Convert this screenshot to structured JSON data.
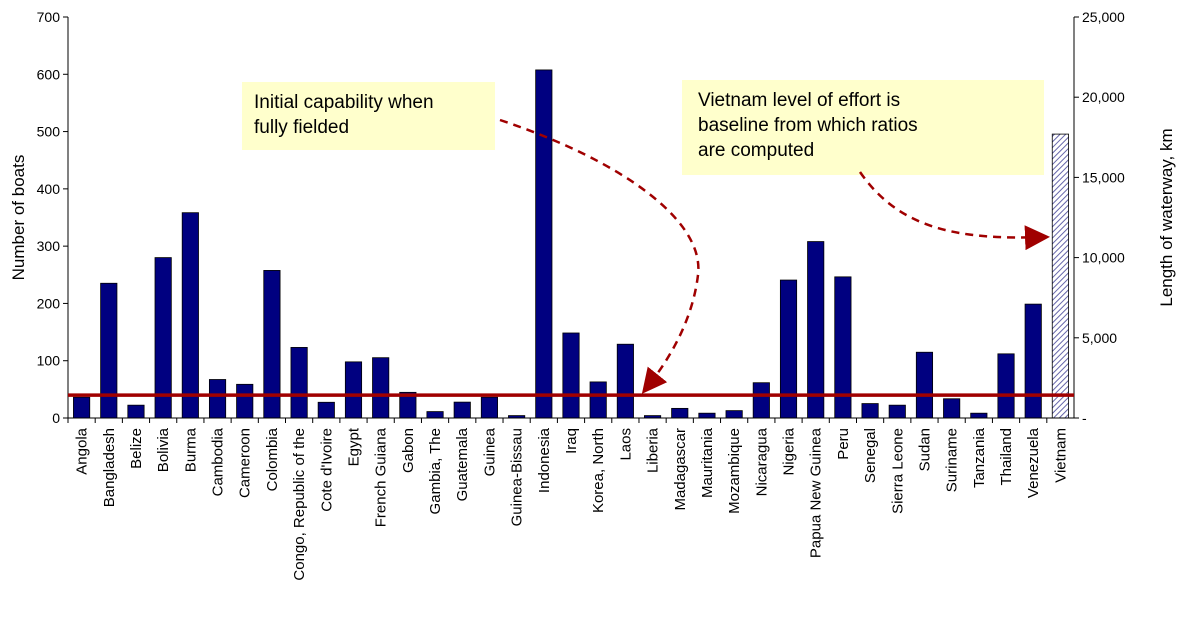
{
  "chart_data": {
    "type": "bar",
    "categories": [
      "Angola",
      "Bangladesh",
      "Belize",
      "Bolivia",
      "Burma",
      "Cambodia",
      "Cameroon",
      "Colombia",
      "Congo, Republic of the",
      "Cote d'Ivoire",
      "Egypt",
      "French Guiana",
      "Gabon",
      "Gambia, The",
      "Guatemala",
      "Guinea",
      "Guinea-Bissau",
      "Indonesia",
      "Iraq",
      "Korea, North",
      "Laos",
      "Liberia",
      "Madagascar",
      "Mauritania",
      "Mozambique",
      "Nicaragua",
      "Nigeria",
      "Papua New Guinea",
      "Peru",
      "Senegal",
      "Sierra Leone",
      "Sudan",
      "Suriname",
      "Tanzania",
      "Thailand",
      "Venezuela",
      "Vietnam"
    ],
    "values": [
      1300,
      8400,
      800,
      10000,
      12800,
      2400,
      2100,
      9200,
      4400,
      980,
      3500,
      3760,
      1600,
      400,
      990,
      1300,
      150,
      21700,
      5300,
      2250,
      4600,
      150,
      600,
      300,
      460,
      2200,
      8600,
      11000,
      8800,
      900,
      800,
      4100,
      1200,
      300,
      4000,
      7100,
      17700
    ],
    "values_axis": "y2",
    "color": "#000080",
    "hatched_bars": [
      36
    ],
    "hatch_color": "#9999cc",
    "ylabel": "Number of boats",
    "y2label": "Length of waterway, km",
    "ylim": [
      0,
      700
    ],
    "yticks": [
      0,
      100,
      200,
      300,
      400,
      500,
      600,
      700
    ],
    "y2lim": [
      0,
      25000
    ],
    "y2ticks": [
      {
        "value": 0,
        "label": "-"
      },
      {
        "value": 5000,
        "label": "5,000"
      },
      {
        "value": 10000,
        "label": "10,000"
      },
      {
        "value": 15000,
        "label": "15,000"
      },
      {
        "value": 20000,
        "label": "20,000"
      },
      {
        "value": 25000,
        "label": "25,000"
      }
    ],
    "reference_line": {
      "value": 40,
      "color": "#a00000"
    },
    "annotations": [
      {
        "lines": [
          "Initial capability when",
          "fully fielded"
        ]
      },
      {
        "lines": [
          "Vietnam level of effort is",
          "baseline from which ratios",
          "are computed"
        ]
      }
    ]
  }
}
